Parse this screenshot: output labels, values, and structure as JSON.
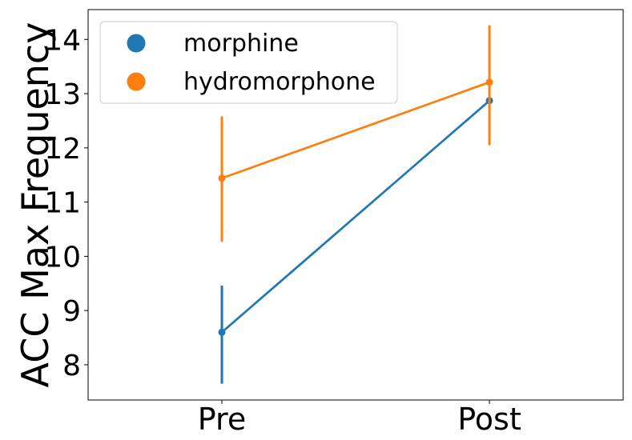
{
  "chart_data": {
    "type": "line",
    "title": "",
    "xlabel": "",
    "ylabel": "ACC Max Frequency",
    "categories": [
      "Pre",
      "Post"
    ],
    "ylim": [
      7.35,
      14.55
    ],
    "yticks": [
      8,
      9,
      10,
      11,
      12,
      13,
      14
    ],
    "grid": false,
    "legend_position": "top-left",
    "series": [
      {
        "name": "morphine",
        "color": "#1f77b4",
        "values": [
          8.6,
          12.87
        ],
        "error_low": [
          7.65,
          12.05
        ],
        "error_high": [
          9.46,
          13.55
        ]
      },
      {
        "name": "hydromorphone",
        "color": "#ff7f0e",
        "values": [
          11.44,
          13.21
        ],
        "error_low": [
          10.27,
          12.05
        ],
        "error_high": [
          12.58,
          14.26
        ]
      }
    ]
  }
}
